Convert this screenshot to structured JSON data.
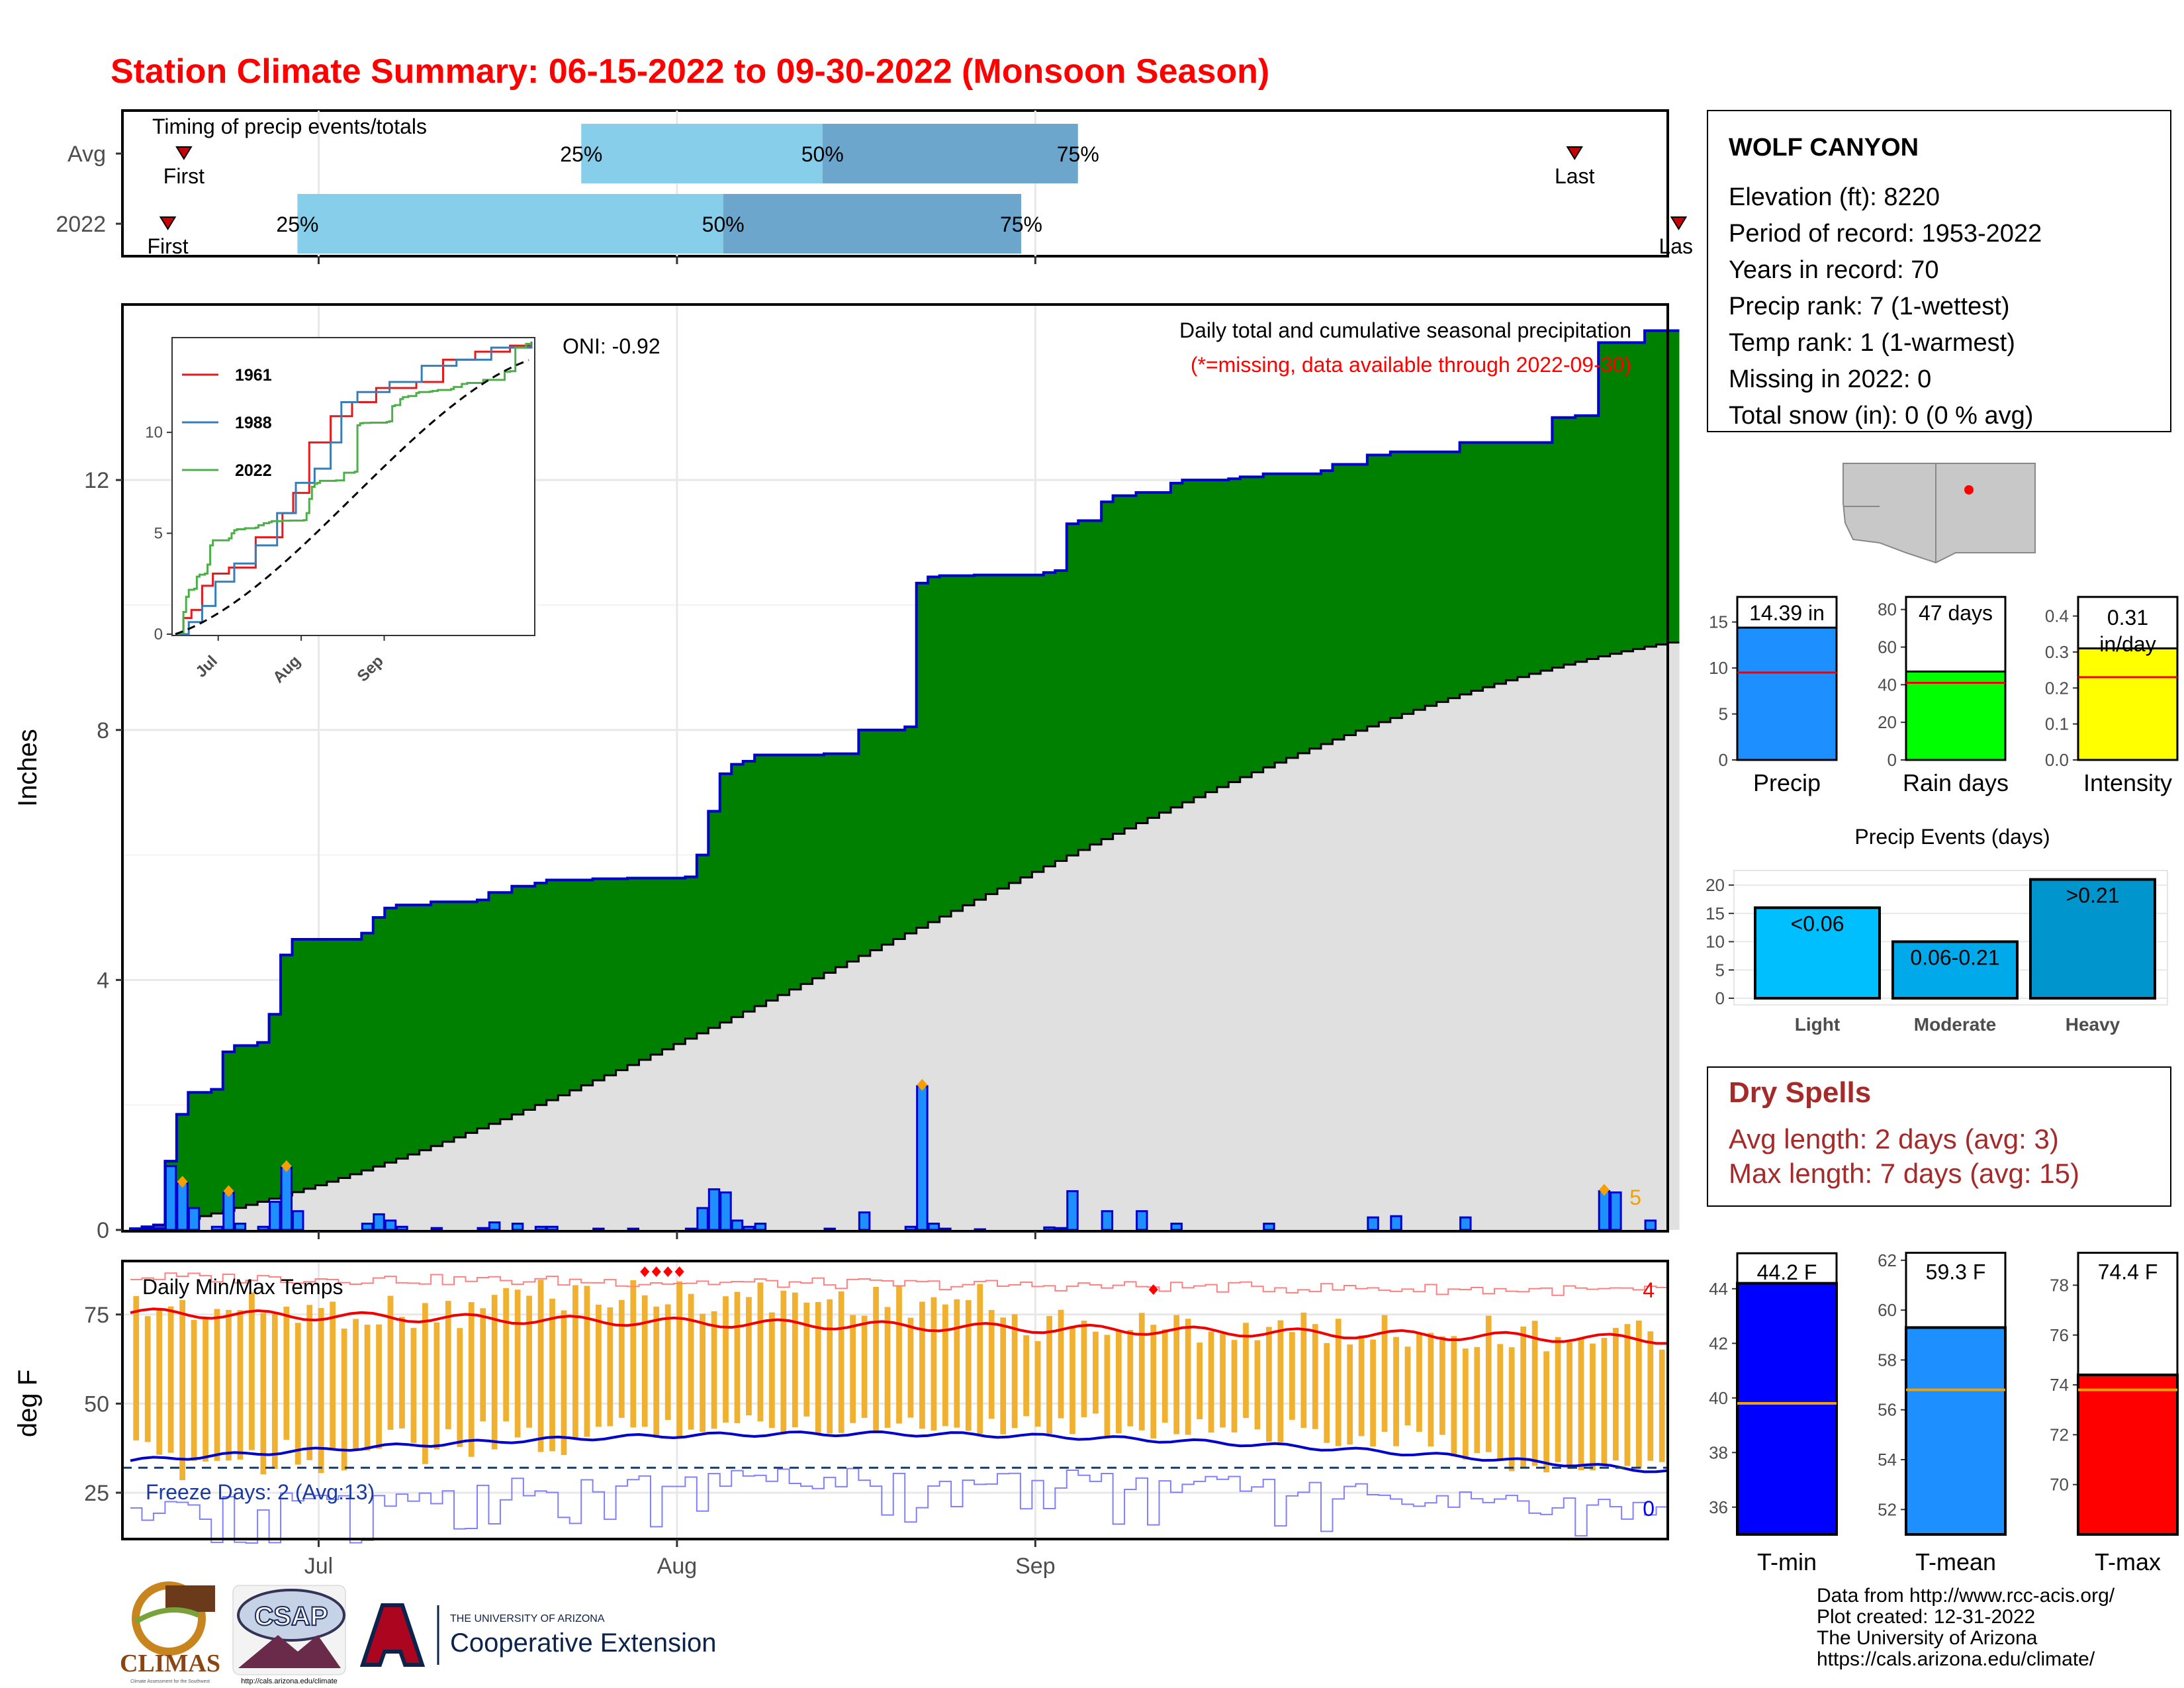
{
  "title": "Station Climate Summary: 06-15-2022 to 09-30-2022 (Monsoon Season)",
  "timing": {
    "heading": "Timing of precip events/totals",
    "rows": [
      {
        "label": "Avg",
        "first_day": 2,
        "last_day": 100,
        "q25": 30,
        "q50": 47,
        "q75": 65
      },
      {
        "label": "2022",
        "first_day": -1,
        "last_day": 105,
        "q25": 10,
        "q50": 40,
        "q75": 61
      }
    ],
    "first_label": "First",
    "last_label": "Last",
    "last_label_clipped": "Las",
    "pct_labels": [
      "25%",
      "50%",
      "75%"
    ]
  },
  "main": {
    "ylabel": "Inches",
    "oni": "ONI: -0.92",
    "note1": "Daily total and cumulative seasonal precipitation",
    "note2": "(*=missing, data available through 2022-09-30)",
    "count_label": "5",
    "yticks": [
      "0",
      "4",
      "8",
      "12"
    ],
    "xticks": [
      "Jul",
      "Aug",
      "Sep"
    ]
  },
  "inset": {
    "legend": [
      "1961",
      "1988",
      "2022"
    ],
    "yticks": [
      "0",
      "5",
      "10"
    ],
    "xticks": [
      "Jul",
      "Aug",
      "Sep"
    ]
  },
  "temps": {
    "heading": "Daily Min/Max Temps",
    "ylabel": "deg F",
    "freeze": "Freeze Days: 2 (Avg:13)",
    "record_high_count": "4",
    "record_low_count": "0",
    "yticks": [
      "25",
      "50",
      "75"
    ]
  },
  "station": {
    "name": "WOLF CANYON",
    "lines": [
      "Elevation (ft): 8220",
      "Period of record: 1953-2022",
      "Years in record: 70",
      "Precip rank: 7 (1-wettest)",
      "Temp rank: 1 (1-warmest)",
      "Missing in 2022: 0",
      "Total snow (in): 0 (0 % avg)"
    ]
  },
  "summary_bars": [
    {
      "label": "Precip",
      "value_text": "14.39 in",
      "value": 14.39,
      "avg": 9.5,
      "yticks": [
        "0",
        "5",
        "10",
        "15"
      ],
      "ymax": 18,
      "color": "#1e8fff"
    },
    {
      "label": "Rain days",
      "value_text": "47 days",
      "value": 47,
      "avg": 41,
      "yticks": [
        "0",
        "20",
        "40",
        "60",
        "80"
      ],
      "ymax": 88,
      "color": "#00ff00"
    },
    {
      "label": "Intensity",
      "value_text_1": "0.31",
      "value_text_2": "in/day",
      "value": 0.31,
      "avg": 0.23,
      "yticks": [
        "0.0",
        "0.1",
        "0.2",
        "0.3",
        "0.4"
      ],
      "ymax": 0.46,
      "color": "#ffff00"
    }
  ],
  "precip_events": {
    "title": "Precip Events (days)",
    "yticks": [
      "0",
      "5",
      "10",
      "15",
      "20"
    ],
    "bars": [
      {
        "label": "Light",
        "text": "<0.06",
        "value": 16,
        "color": "#00bfff"
      },
      {
        "label": "Moderate",
        "text": "0.06-0.21",
        "value": 10,
        "color": "#00a9ea"
      },
      {
        "label": "Heavy",
        "text": ">0.21",
        "value": 21,
        "color": "#0096cd"
      }
    ]
  },
  "dry_spells": {
    "title": "Dry Spells",
    "avg": "Avg length: 2 days (avg: 3)",
    "max": "Max length: 7 days (avg: 15)"
  },
  "temp_bars": [
    {
      "label": "T-min",
      "value_text": "44.2 F",
      "value": 44.2,
      "avg": 39.8,
      "yticks": [
        "36",
        "38",
        "40",
        "42",
        "44"
      ],
      "ymin": 35,
      "ymax": 45.5,
      "color": "#0000ff"
    },
    {
      "label": "T-mean",
      "value_text": "59.3 F",
      "value": 59.3,
      "avg": 56.8,
      "yticks": [
        "52",
        "54",
        "56",
        "58",
        "60",
        "62"
      ],
      "ymin": 51,
      "ymax": 62.5,
      "color": "#1e8fff"
    },
    {
      "label": "T-max",
      "value_text": "74.4 F",
      "value": 74.4,
      "avg": 73.8,
      "yticks": [
        "70",
        "72",
        "74",
        "76",
        "78"
      ],
      "ymin": 68,
      "ymax": 79.5,
      "color": "#ff0000"
    }
  ],
  "credits": [
    "Data from http://www.rcc-acis.org/",
    "Plot created: 12-31-2022",
    "The University of Arizona",
    "https://cals.arizona.edu/climate/"
  ],
  "logos": {
    "climas": "CLIMAS",
    "climas_sub": "Climate Assessment for the Southwest",
    "csap": "CSAP",
    "csap_url": "http://cals.arizona.edu/climate",
    "ua_small": "THE UNIVERSITY OF ARIZONA",
    "ua_big": "Cooperative Extension"
  },
  "chart_data": {
    "type": "area",
    "title": "Daily total and cumulative seasonal precipitation",
    "ylabel": "Inches",
    "x_range": [
      "2022-06-15",
      "2022-09-30"
    ],
    "ylim": [
      0,
      14.3
    ],
    "series": [
      {
        "name": "2022",
        "type": "step-cumulative",
        "steps": [
          [
            0,
            0.02
          ],
          [
            1,
            0.05
          ],
          [
            2,
            0.08
          ],
          [
            3,
            1.1
          ],
          [
            4,
            1.85
          ],
          [
            5,
            2.2
          ],
          [
            7,
            2.25
          ],
          [
            8,
            2.85
          ],
          [
            9,
            2.95
          ],
          [
            11,
            3.0
          ],
          [
            12,
            3.45
          ],
          [
            13,
            4.4
          ],
          [
            14,
            4.65
          ],
          [
            20,
            4.75
          ],
          [
            21,
            5.0
          ],
          [
            22,
            5.15
          ],
          [
            23,
            5.2
          ],
          [
            26,
            5.25
          ],
          [
            30,
            5.28
          ],
          [
            31,
            5.4
          ],
          [
            33,
            5.5
          ],
          [
            35,
            5.55
          ],
          [
            36,
            5.6
          ],
          [
            40,
            5.62
          ],
          [
            43,
            5.63
          ],
          [
            48,
            5.65
          ],
          [
            49,
            6.0
          ],
          [
            50,
            6.7
          ],
          [
            51,
            7.3
          ],
          [
            52,
            7.45
          ],
          [
            53,
            7.5
          ],
          [
            54,
            7.6
          ],
          [
            60,
            7.62
          ],
          [
            63,
            8.0
          ],
          [
            67,
            8.05
          ],
          [
            68,
            10.35
          ],
          [
            69,
            10.45
          ],
          [
            70,
            10.47
          ],
          [
            73,
            10.48
          ],
          [
            79,
            10.52
          ],
          [
            80,
            10.55
          ],
          [
            81,
            11.3
          ],
          [
            82,
            11.35
          ],
          [
            84,
            11.65
          ],
          [
            85,
            11.75
          ],
          [
            87,
            11.8
          ],
          [
            90,
            11.95
          ],
          [
            91,
            12.0
          ],
          [
            95,
            12.02
          ],
          [
            96,
            12.05
          ],
          [
            98,
            12.1
          ],
          [
            103,
            12.15
          ],
          [
            104,
            12.25
          ],
          [
            107,
            12.4
          ],
          [
            109,
            12.45
          ],
          [
            115,
            12.6
          ],
          [
            123,
            13.0
          ],
          [
            125,
            13.03
          ],
          [
            127,
            14.2
          ],
          [
            131,
            14.39
          ]
        ]
      },
      {
        "name": "Avg",
        "type": "cumulative",
        "start": 0,
        "end": 9.4
      },
      {
        "name": "Daily precip",
        "type": "bar",
        "bars": [
          [
            0,
            0.02
          ],
          [
            1,
            0.03
          ],
          [
            2,
            0.03
          ],
          [
            3,
            1.02
          ],
          [
            4,
            0.75
          ],
          [
            5,
            0.35
          ],
          [
            7,
            0.05
          ],
          [
            8,
            0.6
          ],
          [
            9,
            0.1
          ],
          [
            11,
            0.05
          ],
          [
            12,
            0.45
          ],
          [
            13,
            1.0
          ],
          [
            14,
            0.3
          ],
          [
            20,
            0.1
          ],
          [
            21,
            0.25
          ],
          [
            22,
            0.15
          ],
          [
            23,
            0.05
          ],
          [
            26,
            0.03
          ],
          [
            30,
            0.03
          ],
          [
            31,
            0.12
          ],
          [
            33,
            0.1
          ],
          [
            35,
            0.05
          ],
          [
            36,
            0.05
          ],
          [
            40,
            0.02
          ],
          [
            43,
            0.02
          ],
          [
            48,
            0.02
          ],
          [
            49,
            0.35
          ],
          [
            50,
            0.65
          ],
          [
            51,
            0.6
          ],
          [
            52,
            0.15
          ],
          [
            53,
            0.05
          ],
          [
            54,
            0.1
          ],
          [
            60,
            0.02
          ],
          [
            63,
            0.28
          ],
          [
            67,
            0.05
          ],
          [
            68,
            2.3
          ],
          [
            69,
            0.1
          ],
          [
            70,
            0.02
          ],
          [
            73,
            0.01
          ],
          [
            79,
            0.04
          ],
          [
            80,
            0.03
          ],
          [
            81,
            0.62
          ],
          [
            84,
            0.3
          ],
          [
            87,
            0.3
          ],
          [
            90,
            0.1
          ],
          [
            98,
            0.1
          ],
          [
            107,
            0.2
          ],
          [
            109,
            0.22
          ],
          [
            115,
            0.2
          ],
          [
            127,
            0.62
          ],
          [
            128,
            0.6
          ],
          [
            131,
            0.15
          ]
        ]
      }
    ],
    "inset": {
      "type": "line",
      "ylim": [
        0,
        14.5
      ],
      "series": [
        "1961",
        "1988",
        "2022",
        "Avg"
      ]
    },
    "temps": {
      "type": "bar-range",
      "ylabel": "deg F",
      "ylim": [
        12,
        90
      ],
      "avg_max_start": 75.5,
      "avg_max_end": 68,
      "avg_min_start": 34,
      "avg_min_end": 31,
      "freeze_line": 32
    }
  }
}
